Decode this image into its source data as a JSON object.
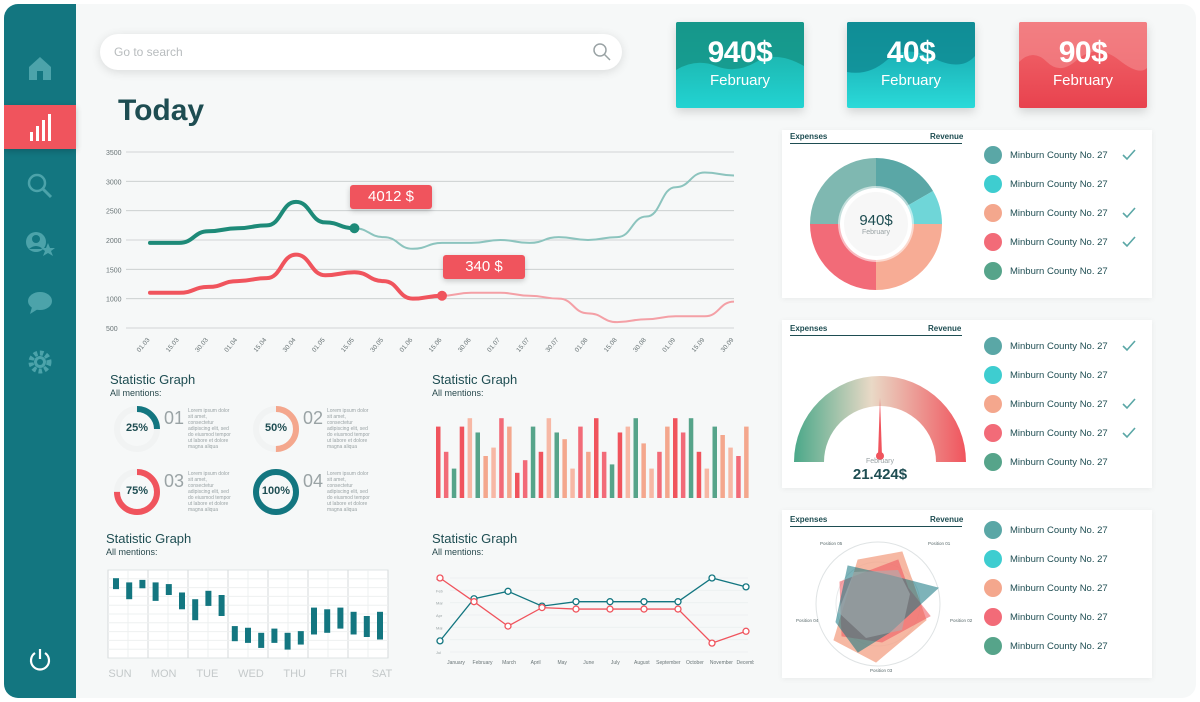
{
  "search": {
    "placeholder": "Go to search"
  },
  "sidebar": {
    "items": [
      "home-icon",
      "bar-chart-icon",
      "search-icon",
      "users-icon",
      "chat-icon",
      "settings-icon",
      "power-icon"
    ],
    "active": 1
  },
  "kpis": [
    {
      "value": "940$",
      "label": "February",
      "color": "#1fc3c8"
    },
    {
      "value": "40$",
      "label": "February",
      "color": "#1ab7bf"
    },
    {
      "value": "90$",
      "label": "February",
      "color": "#f0545d"
    }
  ],
  "page_title": "Today",
  "main_chart": {
    "y_ticks": [
      "3500",
      "3000",
      "2500",
      "2000",
      "1500",
      "1000",
      "500"
    ],
    "x_ticks": [
      "01.03",
      "15.03",
      "30.03",
      "01.04",
      "15.04",
      "30.04",
      "01.05",
      "15.05",
      "30.05",
      "01.06",
      "15.06",
      "30.06",
      "01.07",
      "15.07",
      "30.07",
      "01.08",
      "15.08",
      "30.08",
      "01.09",
      "15.09",
      "30.09"
    ],
    "tooltips": [
      {
        "text": "4012 $",
        "color": "#f0545d"
      },
      {
        "text": "340 $",
        "color": "#f0545d"
      }
    ]
  },
  "stat_graphs": [
    {
      "title": "Statistic Graph",
      "subtitle": "All mentions:"
    },
    {
      "title": "Statistic Graph",
      "subtitle": "All mentions:"
    },
    {
      "title": "Statistic Graph",
      "subtitle": "All mentions:"
    },
    {
      "title": "Statistic Graph",
      "subtitle": "All mentions:"
    }
  ],
  "progress_rings": [
    {
      "num": "01",
      "pct": "25%",
      "value": 0.25,
      "color": "#137680",
      "text": "Lorem ipsum dolor sit amet, consectetur adipiscing elit, sed do eiusmod tempor ut labore et dolore magna aliqua"
    },
    {
      "num": "02",
      "pct": "50%",
      "value": 0.5,
      "color": "#f4a78d",
      "text": "Lorem ipsum dolor sit amet, consectetur adipiscing elit, sed do eiusmod tempor ut labore et dolore magna aliqua"
    },
    {
      "num": "03",
      "pct": "75%",
      "value": 0.75,
      "color": "#f0545d",
      "text": "Lorem ipsum dolor sit amet, consectetur adipiscing elit, sed do eiusmod tempor ut labore et dolore magna aliqua"
    },
    {
      "num": "04",
      "pct": "100%",
      "value": 1.0,
      "color": "#137680",
      "text": "Lorem ipsum dolor sit amet, consectetur adipiscing elit, sed do eiusmod tempor ut labore et dolore magna aliqua"
    }
  ],
  "weekdays": [
    "SUN",
    "MON",
    "TUE",
    "WED",
    "THU",
    "FRI",
    "SAT"
  ],
  "months": [
    "January",
    "February",
    "March",
    "April",
    "May",
    "June",
    "July",
    "August",
    "September",
    "October",
    "November",
    "December"
  ],
  "month_line_chart": {
    "y_ticks": [
      "Jan",
      "Feb",
      "Mar",
      "Apr",
      "Mai",
      "Jun",
      "Jul"
    ],
    "teal": [
      0.15,
      0.72,
      0.82,
      0.62,
      0.68,
      0.68,
      0.68,
      0.68,
      1.0,
      0.88
    ],
    "red": [
      1.0,
      0.68,
      0.35,
      0.6,
      0.58,
      0.58,
      0.58,
      0.58,
      0.12,
      0.28
    ]
  },
  "right_panels": [
    {
      "left": "Expenses",
      "right": "Revenue",
      "center_value": "940$",
      "center_label": "February"
    },
    {
      "left": "Expenses",
      "right": "Revenue",
      "gauge_label": "February",
      "gauge_value": "21.424$",
      "gauge_level": 0.75
    },
    {
      "left": "Expenses",
      "right": "Revenue",
      "radar_labels": [
        "Position 01",
        "Position 02",
        "Position 03",
        "Position 04",
        "Position 05"
      ]
    }
  ],
  "legend": [
    {
      "label": "Minburn County No. 27",
      "color": "#5aa7a6",
      "checked": true
    },
    {
      "label": "Minburn County No. 27",
      "color": "#3ecdd0",
      "checked": false
    },
    {
      "label": "Minburn County No. 27",
      "color": "#f4a78d",
      "checked": true
    },
    {
      "label": "Minburn County No. 27",
      "color": "#f26b78",
      "checked": true
    },
    {
      "label": "Minburn County No. 27",
      "color": "#56a48a",
      "checked": false
    }
  ],
  "legend2": [
    {
      "label": "Minburn County No. 27",
      "color": "#5aa7a6",
      "checked": true
    },
    {
      "label": "Minburn County No. 27",
      "color": "#3ecdd0",
      "checked": false
    },
    {
      "label": "Minburn County No. 27",
      "color": "#f4a78d",
      "checked": true
    },
    {
      "label": "Minburn County No. 27",
      "color": "#f26b78",
      "checked": true
    },
    {
      "label": "Minburn County No. 27",
      "color": "#56a48a",
      "checked": false
    }
  ],
  "legend3": [
    {
      "label": "Minburn County No. 27",
      "color": "#5aa7a6",
      "checked": false
    },
    {
      "label": "Minburn County No. 27",
      "color": "#3ecdd0",
      "checked": false
    },
    {
      "label": "Minburn County No. 27",
      "color": "#f4a78d",
      "checked": false
    },
    {
      "label": "Minburn County No. 27",
      "color": "#f26b78",
      "checked": false
    },
    {
      "label": "Minburn County No. 27",
      "color": "#56a48a",
      "checked": false
    }
  ],
  "chart_data": [
    {
      "type": "line",
      "title": "",
      "ylim": [
        500,
        3500
      ],
      "x": [
        "01.03",
        "15.03",
        "30.03",
        "01.04",
        "15.04",
        "30.04",
        "01.05",
        "15.05",
        "30.05",
        "01.06",
        "15.06",
        "30.06",
        "01.07",
        "15.07",
        "30.07",
        "01.08",
        "15.08",
        "30.08",
        "01.09",
        "15.09",
        "30.09"
      ],
      "series": [
        {
          "values": [
            1950,
            1950,
            2150,
            2200,
            2250,
            2650,
            2300,
            2200,
            2050,
            1850,
            1950,
            1950,
            2000,
            1950,
            2050,
            2000,
            2050,
            2400,
            2900,
            3150,
            3100
          ]
        },
        {
          "values": [
            1100,
            1100,
            1200,
            1300,
            1350,
            1750,
            1400,
            1450,
            1300,
            1000,
            1050,
            1100,
            1100,
            1050,
            1000,
            750,
            600,
            650,
            700,
            700,
            950
          ]
        }
      ]
    },
    {
      "type": "bar",
      "values": [
        0.85,
        0.55,
        0.35,
        0.85,
        0.95,
        0.78,
        0.5,
        0.6,
        0.95,
        0.85,
        0.3,
        0.45,
        0.85,
        0.55,
        0.95,
        0.78,
        0.7,
        0.35,
        0.85,
        0.55,
        0.95,
        0.55,
        0.4,
        0.78,
        0.85,
        0.95,
        0.65,
        0.35,
        0.55,
        0.85,
        0.95,
        0.78,
        0.95,
        0.55,
        0.35,
        0.85,
        0.75,
        0.6,
        0.5,
        0.85
      ]
    },
    {
      "type": "bar",
      "values": [
        [
          0.95,
          0.82
        ],
        [
          0.9,
          0.7
        ],
        [
          0.93,
          0.83
        ],
        [
          0.9,
          0.68
        ],
        [
          0.88,
          0.75
        ],
        [
          0.78,
          0.58
        ],
        [
          0.7,
          0.45
        ],
        [
          0.8,
          0.62
        ],
        [
          0.75,
          0.5
        ],
        [
          0.38,
          0.2
        ],
        [
          0.36,
          0.18
        ],
        [
          0.3,
          0.12
        ],
        [
          0.35,
          0.18
        ],
        [
          0.3,
          0.1
        ],
        [
          0.32,
          0.16
        ],
        [
          0.6,
          0.28
        ],
        [
          0.58,
          0.3
        ],
        [
          0.6,
          0.35
        ],
        [
          0.55,
          0.28
        ],
        [
          0.5,
          0.25
        ],
        [
          0.55,
          0.22
        ]
      ]
    }
  ]
}
